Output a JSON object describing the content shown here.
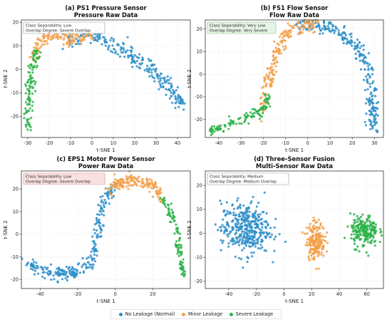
{
  "colors": {
    "no_leak": "#2e8fc9",
    "minor": "#f5a04a",
    "severe": "#2db34a"
  },
  "legend": {
    "no_leak": "No Leakage (Normal)",
    "minor": "Minor Leakage",
    "severe": "Severe Leakage"
  },
  "chart_data": [
    {
      "type": "scatter",
      "title": "(a) PS1 Pressure Sensor",
      "subtitle": "Pressure Raw Data",
      "xlabel": "t-SNE 1",
      "ylabel": "t-SNE 2",
      "xlim": [
        -33,
        46
      ],
      "ylim": [
        -29,
        21
      ],
      "xticks": [
        -30,
        -20,
        -10,
        0,
        10,
        20,
        30,
        40
      ],
      "yticks": [
        -20,
        -10,
        0,
        10,
        20
      ],
      "annotation": {
        "line1": "Class Separability: Low",
        "line2": "Overlap Degree: Severe Overlap",
        "bg": "#ffffff",
        "border": "#999999"
      },
      "series": [
        {
          "key": "no_leak",
          "path": [
            [
              -12,
              13
            ],
            [
              -5,
              15
            ],
            [
              0,
              15
            ],
            [
              5,
              13
            ],
            [
              10,
              10
            ],
            [
              15,
              8
            ],
            [
              20,
              5
            ],
            [
              25,
              2
            ],
            [
              30,
              -2
            ],
            [
              35,
              -7
            ],
            [
              40,
              -12
            ],
            [
              43,
              -16
            ]
          ],
          "spread": 1.8,
          "n": 260
        },
        {
          "key": "minor",
          "path": [
            [
              -28,
              4
            ],
            [
              -26,
              8
            ],
            [
              -24,
              12
            ],
            [
              -20,
              14
            ],
            [
              -15,
              14
            ],
            [
              -10,
              13
            ],
            [
              -5,
              14
            ],
            [
              0,
              16
            ]
          ],
          "spread": 1.7,
          "n": 150
        },
        {
          "key": "severe",
          "path": [
            [
              -29,
              -26
            ],
            [
              -30,
              -20
            ],
            [
              -30,
              -12
            ],
            [
              -29,
              -5
            ],
            [
              -28,
              0
            ],
            [
              -27,
              4
            ],
            [
              -26,
              8
            ]
          ],
          "spread": 1.3,
          "n": 110
        }
      ]
    },
    {
      "type": "scatter",
      "title": "(b) FS1 Flow Sensor",
      "subtitle": "Flow Raw Data",
      "xlabel": "t-SNE 1",
      "ylabel": "t-SNE 2",
      "xlim": [
        -46,
        34
      ],
      "ylim": [
        -28,
        24
      ],
      "xticks": [
        -40,
        -30,
        -20,
        -10,
        0,
        10,
        20,
        30
      ],
      "yticks": [
        -20,
        -10,
        0,
        10,
        20
      ],
      "annotation": {
        "line1": "Class Separability: Very Low",
        "line2": "Overlap Degree: Very Severe",
        "bg": "#e4f3e4",
        "border": "#7fbf7f"
      },
      "series": [
        {
          "key": "no_leak",
          "path": [
            [
              -5,
              21
            ],
            [
              0,
              22
            ],
            [
              5,
              22
            ],
            [
              10,
              20
            ],
            [
              15,
              18
            ],
            [
              20,
              14
            ],
            [
              25,
              8
            ],
            [
              28,
              0
            ],
            [
              29,
              -8
            ],
            [
              29,
              -16
            ],
            [
              29,
              -24
            ]
          ],
          "spread": 1.6,
          "n": 260
        },
        {
          "key": "minor",
          "path": [
            [
              -20,
              -16
            ],
            [
              -19,
              -10
            ],
            [
              -18,
              -4
            ],
            [
              -16,
              2
            ],
            [
              -14,
              8
            ],
            [
              -12,
              14
            ],
            [
              -10,
              18
            ],
            [
              -5,
              21
            ],
            [
              0,
              22
            ],
            [
              5,
              22
            ]
          ],
          "spread": 1.5,
          "n": 180
        },
        {
          "key": "severe",
          "path": [
            [
              -44,
              -25
            ],
            [
              -40,
              -24
            ],
            [
              -35,
              -22
            ],
            [
              -30,
              -20
            ],
            [
              -25,
              -18
            ],
            [
              -20,
              -16
            ],
            [
              -18,
              -10
            ]
          ],
          "spread": 1.2,
          "n": 120
        }
      ]
    },
    {
      "type": "scatter",
      "title": "(c) EPS1 Motor Power Sensor",
      "subtitle": "Power Raw Data",
      "xlabel": "t-SNE 1",
      "ylabel": "t-SNE 2",
      "xlim": [
        -50,
        40
      ],
      "ylim": [
        -24,
        28
      ],
      "xticks": [
        -40,
        -20,
        0,
        20
      ],
      "yticks": [
        -20,
        -10,
        0,
        10,
        20
      ],
      "annotation": {
        "line1": "Class Separability: Low",
        "line2": "Overlap Degree: Severe Overlap",
        "bg": "#f9dede",
        "border": "#d98c8c"
      },
      "series": [
        {
          "key": "no_leak",
          "path": [
            [
              -47,
              -13
            ],
            [
              -40,
              -16
            ],
            [
              -30,
              -18
            ],
            [
              -20,
              -17
            ],
            [
              -12,
              -12
            ],
            [
              -10,
              -5
            ],
            [
              -9,
              3
            ],
            [
              -8,
              10
            ],
            [
              -5,
              17
            ],
            [
              0,
              21
            ]
          ],
          "spread": 1.5,
          "n": 260
        },
        {
          "key": "minor",
          "path": [
            [
              -3,
              20
            ],
            [
              2,
              23
            ],
            [
              7,
              24
            ],
            [
              12,
              24
            ],
            [
              17,
              23
            ],
            [
              22,
              20
            ],
            [
              25,
              16
            ]
          ],
          "spread": 1.5,
          "n": 160
        },
        {
          "key": "severe",
          "path": [
            [
              25,
              16
            ],
            [
              29,
              10
            ],
            [
              32,
              4
            ],
            [
              34,
              -3
            ],
            [
              35,
              -10
            ],
            [
              36,
              -17
            ]
          ],
          "spread": 1.1,
          "n": 100
        }
      ]
    },
    {
      "type": "scatter",
      "title": "(d) Three-Sensor Fusion",
      "subtitle": "Multi-Sensor Raw Data",
      "xlabel": "t-SNE 1",
      "ylabel": "t-SNE 2",
      "xlim": [
        -57,
        72
      ],
      "ylim": [
        -23,
        26
      ],
      "xticks": [
        -40,
        -20,
        0,
        20,
        40,
        60
      ],
      "yticks": [
        -20,
        -10,
        0,
        10,
        20
      ],
      "annotation": {
        "line1": "Class Separability: Medium",
        "line2": "Overlap Degree: Medium Overlap",
        "bg": "#ffffff",
        "border": "#999999"
      },
      "series": [
        {
          "key": "no_leak",
          "blob": [
            -28,
            2,
            16,
            10
          ],
          "n": 380
        },
        {
          "key": "minor",
          "blob": [
            23,
            -3,
            6,
            7
          ],
          "n": 200
        },
        {
          "key": "severe",
          "blob": [
            58,
            1,
            9,
            6
          ],
          "n": 210
        }
      ]
    }
  ]
}
